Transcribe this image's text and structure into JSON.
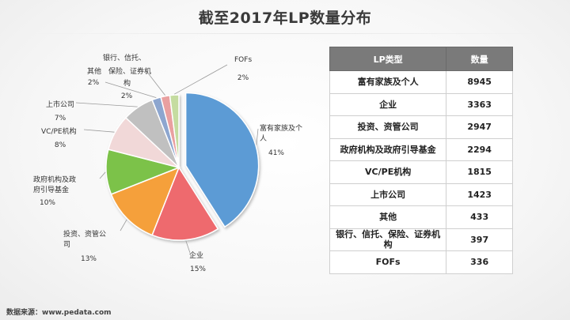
{
  "title": "截至2017年LP数量分布",
  "source": "数据来源：www.pedata.com",
  "table": {
    "headers": [
      "LP类型",
      "数量"
    ],
    "rows": [
      {
        "type": "富有家族及个人",
        "count": "8945"
      },
      {
        "type": "企业",
        "count": "3363"
      },
      {
        "type": "投资、资管公司",
        "count": "2947"
      },
      {
        "type": "政府机构及政府引导基金",
        "count": "2294"
      },
      {
        "type": "VC/PE机构",
        "count": "1815"
      },
      {
        "type": "上市公司",
        "count": "1423"
      },
      {
        "type": "其他",
        "count": "433"
      },
      {
        "type": "银行、信托、保险、证券机构",
        "count": "397"
      },
      {
        "type": "FOFs",
        "count": "336"
      }
    ]
  },
  "chart_data": {
    "type": "pie",
    "title": "截至2017年LP数量分布",
    "slices": [
      {
        "label": "富有家族及个人",
        "label_lines": [
          "富有家族及个",
          "人"
        ],
        "pct_text": "41%",
        "value": 41,
        "color": "#5b9bd5",
        "exploded": true
      },
      {
        "label": "企业",
        "label_lines": [
          "企业"
        ],
        "pct_text": "15%",
        "value": 15,
        "color": "#ee6b6e"
      },
      {
        "label": "投资、资管公司",
        "label_lines": [
          "投资、资管公",
          "司"
        ],
        "pct_text": "13%",
        "value": 13,
        "color": "#f5a03a"
      },
      {
        "label": "政府机构及政府引导基金",
        "label_lines": [
          "政府机构及政",
          "府引导基金"
        ],
        "pct_text": "10%",
        "value": 10,
        "color": "#7cc24a"
      },
      {
        "label": "VC/PE机构",
        "label_lines": [
          "VC/PE机构"
        ],
        "pct_text": "8%",
        "value": 8,
        "color": "#f1d8d8"
      },
      {
        "label": "上市公司",
        "label_lines": [
          "上市公司"
        ],
        "pct_text": "7%",
        "value": 7,
        "color": "#c0c0c0"
      },
      {
        "label": "其他",
        "label_lines": [
          "其他"
        ],
        "pct_text": "2%",
        "value": 2,
        "color": "#8da6cf"
      },
      {
        "label": "银行、信托、保险、证券机构",
        "label_lines": [
          "银行、信托、",
          "保险、证券机",
          "构"
        ],
        "pct_text": "2%",
        "value": 2,
        "color": "#e9a0a0"
      },
      {
        "label": "FOFs",
        "label_lines": [
          "FOFs"
        ],
        "pct_text": "2%",
        "value": 2,
        "color": "#c5dca0"
      }
    ]
  }
}
